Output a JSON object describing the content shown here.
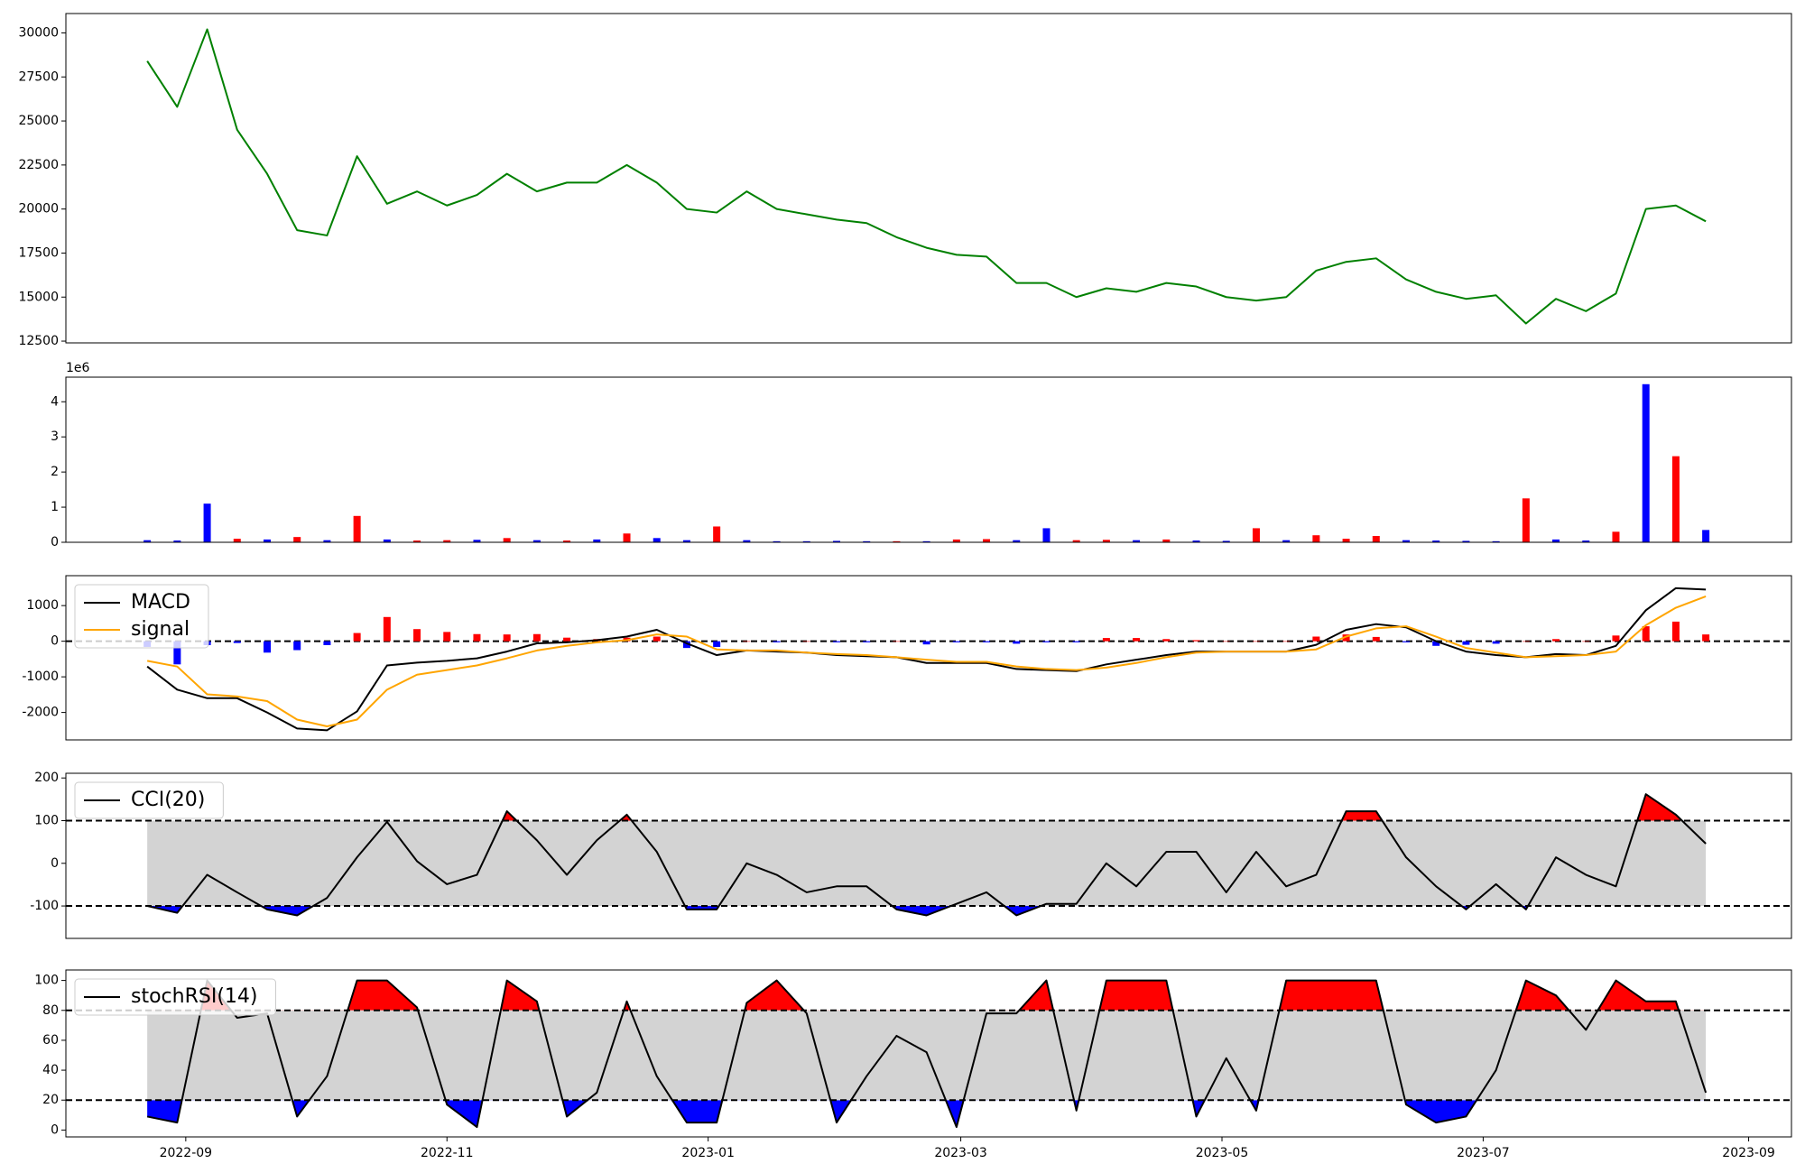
{
  "chart_data": [
    {
      "type": "line",
      "x": [
        "2022-08-23",
        "2022-08-30",
        "2022-09-06",
        "2022-09-13",
        "2022-09-20",
        "2022-09-27",
        "2022-10-04",
        "2022-10-11",
        "2022-10-18",
        "2022-10-25",
        "2022-11-01",
        "2022-11-08",
        "2022-11-15",
        "2022-11-22",
        "2022-11-29",
        "2022-12-06",
        "2022-12-13",
        "2022-12-20",
        "2022-12-27",
        "2023-01-03",
        "2023-01-10",
        "2023-01-17",
        "2023-01-24",
        "2023-01-31",
        "2023-02-07",
        "2023-02-14",
        "2023-02-21",
        "2023-02-28",
        "2023-03-07",
        "2023-03-14",
        "2023-03-21",
        "2023-03-28",
        "2023-04-04",
        "2023-04-11",
        "2023-04-18",
        "2023-04-25",
        "2023-05-02",
        "2023-05-09",
        "2023-05-16",
        "2023-05-23",
        "2023-05-30",
        "2023-06-06",
        "2023-06-13",
        "2023-06-20",
        "2023-06-27",
        "2023-07-04",
        "2023-07-11",
        "2023-07-18",
        "2023-07-25",
        "2023-08-01",
        "2023-08-08",
        "2023-08-15",
        "2023-08-22"
      ],
      "series": [
        {
          "color": "green",
          "values": [
            28400,
            25800,
            30200,
            24500,
            22000,
            18800,
            18500,
            23000,
            20300,
            21000,
            20200,
            20800,
            22000,
            21000,
            21500,
            21500,
            22500,
            21500,
            20000,
            19800,
            21000,
            20000,
            19700,
            19400,
            19200,
            18400,
            17800,
            17400,
            17300,
            15800,
            15800,
            15000,
            15500,
            15300,
            15800,
            15600,
            15000,
            14800,
            15000,
            16500,
            17000,
            17200,
            16000,
            15300,
            14900,
            15100,
            13500,
            14900,
            14200,
            15200,
            20000,
            20200,
            19300
          ]
        }
      ],
      "xlim": [
        "2022-08-04",
        "2023-09-11"
      ],
      "ylim": [
        12400,
        31100
      ],
      "yticks": [
        12500,
        15000,
        17500,
        20000,
        22500,
        25000,
        27500,
        30000
      ]
    },
    {
      "type": "bar",
      "x": [
        "2022-08-23",
        "2022-08-30",
        "2022-09-06",
        "2022-09-13",
        "2022-09-20",
        "2022-09-27",
        "2022-10-04",
        "2022-10-11",
        "2022-10-18",
        "2022-10-25",
        "2022-11-01",
        "2022-11-08",
        "2022-11-15",
        "2022-11-22",
        "2022-11-29",
        "2022-12-06",
        "2022-12-13",
        "2022-12-20",
        "2022-12-27",
        "2023-01-03",
        "2023-01-10",
        "2023-01-17",
        "2023-01-24",
        "2023-01-31",
        "2023-02-07",
        "2023-02-14",
        "2023-02-21",
        "2023-02-28",
        "2023-03-07",
        "2023-03-14",
        "2023-03-21",
        "2023-03-28",
        "2023-04-04",
        "2023-04-11",
        "2023-04-18",
        "2023-04-25",
        "2023-05-02",
        "2023-05-09",
        "2023-05-16",
        "2023-05-23",
        "2023-05-30",
        "2023-06-06",
        "2023-06-13",
        "2023-06-20",
        "2023-06-27",
        "2023-07-04",
        "2023-07-11",
        "2023-07-18",
        "2023-07-25",
        "2023-08-01",
        "2023-08-08",
        "2023-08-15",
        "2023-08-22"
      ],
      "series": [
        {
          "values": [
            60000,
            50000,
            1100000,
            100000,
            80000,
            150000,
            60000,
            750000,
            80000,
            50000,
            60000,
            70000,
            120000,
            60000,
            50000,
            80000,
            250000,
            120000,
            60000,
            450000,
            60000,
            30000,
            30000,
            40000,
            30000,
            30000,
            30000,
            80000,
            90000,
            60000,
            400000,
            60000,
            70000,
            60000,
            80000,
            50000,
            40000,
            400000,
            60000,
            200000,
            100000,
            180000,
            60000,
            50000,
            40000,
            30000,
            1250000,
            80000,
            50000,
            300000,
            4500000,
            2450000,
            350000
          ],
          "colors": [
            "blue",
            "blue",
            "blue",
            "red",
            "blue",
            "red",
            "blue",
            "red",
            "blue",
            "red",
            "red",
            "blue",
            "red",
            "blue",
            "red",
            "blue",
            "red",
            "blue",
            "blue",
            "red",
            "blue",
            "blue",
            "blue",
            "blue",
            "blue",
            "red",
            "blue",
            "red",
            "red",
            "blue",
            "blue",
            "red",
            "red",
            "blue",
            "red",
            "blue",
            "blue",
            "red",
            "blue",
            "red",
            "red",
            "red",
            "blue",
            "blue",
            "blue",
            "blue",
            "red",
            "blue",
            "blue",
            "red",
            "blue",
            "red",
            "blue"
          ]
        }
      ],
      "xlim": [
        "2022-08-04",
        "2023-09-11"
      ],
      "ylim": [
        0,
        4700000
      ],
      "offset_label": "1e6",
      "yticks": [
        0,
        {
          "value": 1000000,
          "label": "1"
        },
        {
          "value": 2000000,
          "label": "2"
        },
        {
          "value": 3000000,
          "label": "3"
        },
        {
          "value": 4000000,
          "label": "4"
        }
      ]
    },
    {
      "type": "line",
      "x": [
        "2022-08-23",
        "2022-08-30",
        "2022-09-06",
        "2022-09-13",
        "2022-09-20",
        "2022-09-27",
        "2022-10-04",
        "2022-10-11",
        "2022-10-18",
        "2022-10-25",
        "2022-11-01",
        "2022-11-08",
        "2022-11-15",
        "2022-11-22",
        "2022-11-29",
        "2022-12-06",
        "2022-12-13",
        "2022-12-20",
        "2022-12-27",
        "2023-01-03",
        "2023-01-10",
        "2023-01-17",
        "2023-01-24",
        "2023-01-31",
        "2023-02-07",
        "2023-02-14",
        "2023-02-21",
        "2023-02-28",
        "2023-03-07",
        "2023-03-14",
        "2023-03-21",
        "2023-03-28",
        "2023-04-04",
        "2023-04-11",
        "2023-04-18",
        "2023-04-25",
        "2023-05-02",
        "2023-05-09",
        "2023-05-16",
        "2023-05-23",
        "2023-05-30",
        "2023-06-06",
        "2023-06-13",
        "2023-06-20",
        "2023-06-27",
        "2023-07-04",
        "2023-07-11",
        "2023-07-18",
        "2023-07-25",
        "2023-08-01",
        "2023-08-08",
        "2023-08-15",
        "2023-08-22"
      ],
      "series": [
        {
          "type": "bar",
          "positive_color": "red",
          "negative_color": "blue",
          "values": [
            -160,
            -650,
            -110,
            -50,
            -320,
            -250,
            -110,
            230,
            680,
            340,
            260,
            200,
            190,
            200,
            100,
            60,
            100,
            130,
            -190,
            -160,
            0,
            -30,
            0,
            -30,
            -30,
            0,
            -90,
            -30,
            -30,
            -70,
            -30,
            -30,
            90,
            90,
            60,
            30,
            0,
            0,
            0,
            130,
            190,
            120,
            -30,
            -130,
            -100,
            -70,
            0,
            60,
            0,
            160,
            420,
            550,
            190
          ]
        },
        {
          "name": "MACD",
          "color": "black",
          "values": [
            -710,
            -1360,
            -1600,
            -1600,
            -2000,
            -2450,
            -2500,
            -1970,
            -680,
            -600,
            -550,
            -480,
            -290,
            -60,
            -30,
            30,
            130,
            320,
            -60,
            -390,
            -260,
            -290,
            -320,
            -390,
            -420,
            -450,
            -610,
            -610,
            -610,
            -780,
            -810,
            -840,
            -650,
            -520,
            -390,
            -290,
            -290,
            -290,
            -290,
            -100,
            320,
            480,
            390,
            0,
            -290,
            -390,
            -450,
            -360,
            -390,
            -130,
            870,
            1490,
            1450
          ]
        },
        {
          "name": "signal",
          "color": "orange",
          "values": [
            -550,
            -710,
            -1490,
            -1550,
            -1680,
            -2200,
            -2390,
            -2200,
            -1360,
            -940,
            -810,
            -680,
            -480,
            -260,
            -130,
            -30,
            30,
            190,
            130,
            -230,
            -260,
            -260,
            -320,
            -360,
            -390,
            -450,
            -520,
            -580,
            -580,
            -710,
            -780,
            -810,
            -740,
            -610,
            -450,
            -320,
            -290,
            -290,
            -290,
            -230,
            130,
            360,
            420,
            130,
            -190,
            -320,
            -450,
            -420,
            -390,
            -290,
            450,
            940,
            1260
          ]
        }
      ],
      "xlim": [
        "2022-08-04",
        "2023-09-11"
      ],
      "ylim": [
        -2770,
        1840
      ],
      "yticks": [
        -2000,
        -1000,
        0,
        1000
      ],
      "hlines": [
        0
      ],
      "legend": "upper left"
    },
    {
      "type": "line",
      "x": [
        "2022-08-23",
        "2022-08-30",
        "2022-09-06",
        "2022-09-13",
        "2022-09-20",
        "2022-09-27",
        "2022-10-04",
        "2022-10-11",
        "2022-10-18",
        "2022-10-25",
        "2022-11-01",
        "2022-11-08",
        "2022-11-15",
        "2022-11-22",
        "2022-11-29",
        "2022-12-06",
        "2022-12-13",
        "2022-12-20",
        "2022-12-27",
        "2023-01-03",
        "2023-01-10",
        "2023-01-17",
        "2023-01-24",
        "2023-01-31",
        "2023-02-07",
        "2023-02-14",
        "2023-02-21",
        "2023-02-28",
        "2023-03-07",
        "2023-03-14",
        "2023-03-21",
        "2023-03-28",
        "2023-04-04",
        "2023-04-11",
        "2023-04-18",
        "2023-04-25",
        "2023-05-02",
        "2023-05-09",
        "2023-05-16",
        "2023-05-23",
        "2023-05-30",
        "2023-06-06",
        "2023-06-13",
        "2023-06-20",
        "2023-06-27",
        "2023-07-04",
        "2023-07-11",
        "2023-07-18",
        "2023-07-25",
        "2023-08-01",
        "2023-08-08",
        "2023-08-15",
        "2023-08-22"
      ],
      "series": [
        {
          "name": "CCI(20)",
          "color": "black",
          "values": [
            -100,
            -116,
            -27,
            -68,
            -108,
            -122,
            -81,
            14,
            97,
            5,
            -49,
            -27,
            122,
            54,
            -27,
            54,
            114,
            27,
            -108,
            -108,
            0,
            -27,
            -68,
            -54,
            -54,
            -108,
            -122,
            -95,
            -68,
            -122,
            -95,
            -95,
            0,
            -54,
            27,
            27,
            -68,
            27,
            -54,
            -27,
            122,
            122,
            14,
            -54,
            -108,
            -49,
            -108,
            14,
            -27,
            -54,
            162,
            114,
            46
          ]
        }
      ],
      "xlim": [
        "2022-08-04",
        "2023-09-11"
      ],
      "ylim": [
        -176,
        211
      ],
      "yticks": [
        -100,
        0,
        100,
        200
      ],
      "hlines": [
        -100,
        100
      ],
      "fill": {
        "between": "lightgray",
        "above": "red",
        "below": "blue"
      },
      "legend": "upper left"
    },
    {
      "type": "line",
      "x": [
        "2022-08-23",
        "2022-08-30",
        "2022-09-06",
        "2022-09-13",
        "2022-09-20",
        "2022-09-27",
        "2022-10-04",
        "2022-10-11",
        "2022-10-18",
        "2022-10-25",
        "2022-11-01",
        "2022-11-08",
        "2022-11-15",
        "2022-11-22",
        "2022-11-29",
        "2022-12-06",
        "2022-12-13",
        "2022-12-20",
        "2022-12-27",
        "2023-01-03",
        "2023-01-10",
        "2023-01-17",
        "2023-01-24",
        "2023-01-31",
        "2023-02-07",
        "2023-02-14",
        "2023-02-21",
        "2023-02-28",
        "2023-03-07",
        "2023-03-14",
        "2023-03-21",
        "2023-03-28",
        "2023-04-04",
        "2023-04-11",
        "2023-04-18",
        "2023-04-25",
        "2023-05-02",
        "2023-05-09",
        "2023-05-16",
        "2023-05-23",
        "2023-05-30",
        "2023-06-06",
        "2023-06-13",
        "2023-06-20",
        "2023-06-27",
        "2023-07-04",
        "2023-07-11",
        "2023-07-18",
        "2023-07-25",
        "2023-08-01",
        "2023-08-08",
        "2023-08-15",
        "2023-08-22"
      ],
      "series": [
        {
          "name": "stochRSI(14)",
          "color": "black",
          "values": [
            9,
            5,
            100,
            75,
            78,
            9,
            36,
            100,
            100,
            82,
            17,
            2,
            100,
            86,
            9,
            25,
            86,
            36,
            5,
            5,
            85,
            100,
            78,
            5,
            36,
            63,
            52,
            2,
            78,
            78,
            100,
            13,
            100,
            100,
            100,
            9,
            48,
            13,
            100,
            100,
            100,
            100,
            17,
            5,
            9,
            40,
            100,
            90,
            67,
            100,
            86,
            86,
            25
          ]
        }
      ],
      "xlim": [
        "2022-08-04",
        "2023-09-11"
      ],
      "ylim": [
        -4.6,
        107
      ],
      "yticks": [
        0,
        20,
        40,
        60,
        80,
        100
      ],
      "hlines": [
        20,
        80
      ],
      "fill": {
        "between": "lightgray",
        "above": "red",
        "below": "blue"
      },
      "legend": "upper left",
      "xticks": [
        {
          "value": "2022-09-01",
          "label": "2022-09"
        },
        {
          "value": "2022-11-01",
          "label": "2022-11"
        },
        {
          "value": "2023-01-01",
          "label": "2023-01"
        },
        {
          "value": "2023-03-01",
          "label": "2023-03"
        },
        {
          "value": "2023-05-01",
          "label": "2023-05"
        },
        {
          "value": "2023-07-01",
          "label": "2023-07"
        },
        {
          "value": "2023-09-01",
          "label": "2023-09"
        }
      ]
    }
  ]
}
